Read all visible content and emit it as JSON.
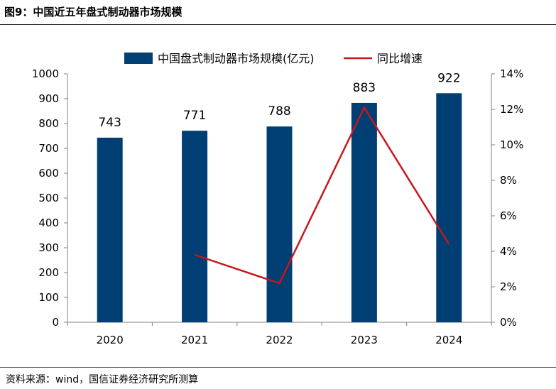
{
  "figure": {
    "title": "图9：中国近五年盘式制动器市场规模",
    "source": "资料来源：wind，国信证券经济研究所测算"
  },
  "colors": {
    "bar": "#003F74",
    "line": "#C8161D",
    "axis": "#808080"
  },
  "chart_data": {
    "type": "bar",
    "categories": [
      "2020",
      "2021",
      "2022",
      "2023",
      "2024"
    ],
    "series": [
      {
        "name": "中国盘式制动器市场规模(亿元)",
        "type": "bar",
        "axis": "left",
        "values": [
          743,
          771,
          788,
          883,
          922
        ],
        "labels": [
          "743",
          "771",
          "788",
          "883",
          "922"
        ]
      },
      {
        "name": "同比增速",
        "type": "line",
        "axis": "right",
        "values": [
          null,
          3.8,
          2.2,
          12.1,
          4.4
        ]
      }
    ],
    "y_left": {
      "lim": [
        0,
        1000
      ],
      "ticks": [
        0,
        100,
        200,
        300,
        400,
        500,
        600,
        700,
        800,
        900,
        1000
      ],
      "tick_labels": [
        "0",
        "100",
        "200",
        "300",
        "400",
        "500",
        "600",
        "700",
        "800",
        "900",
        "1000"
      ]
    },
    "y_right": {
      "lim": [
        0,
        14
      ],
      "ticks": [
        0,
        2,
        4,
        6,
        8,
        10,
        12,
        14
      ],
      "tick_labels": [
        "0%",
        "2%",
        "4%",
        "6%",
        "8%",
        "10%",
        "12%",
        "14%"
      ]
    },
    "grid": false,
    "legend": "top-center"
  }
}
